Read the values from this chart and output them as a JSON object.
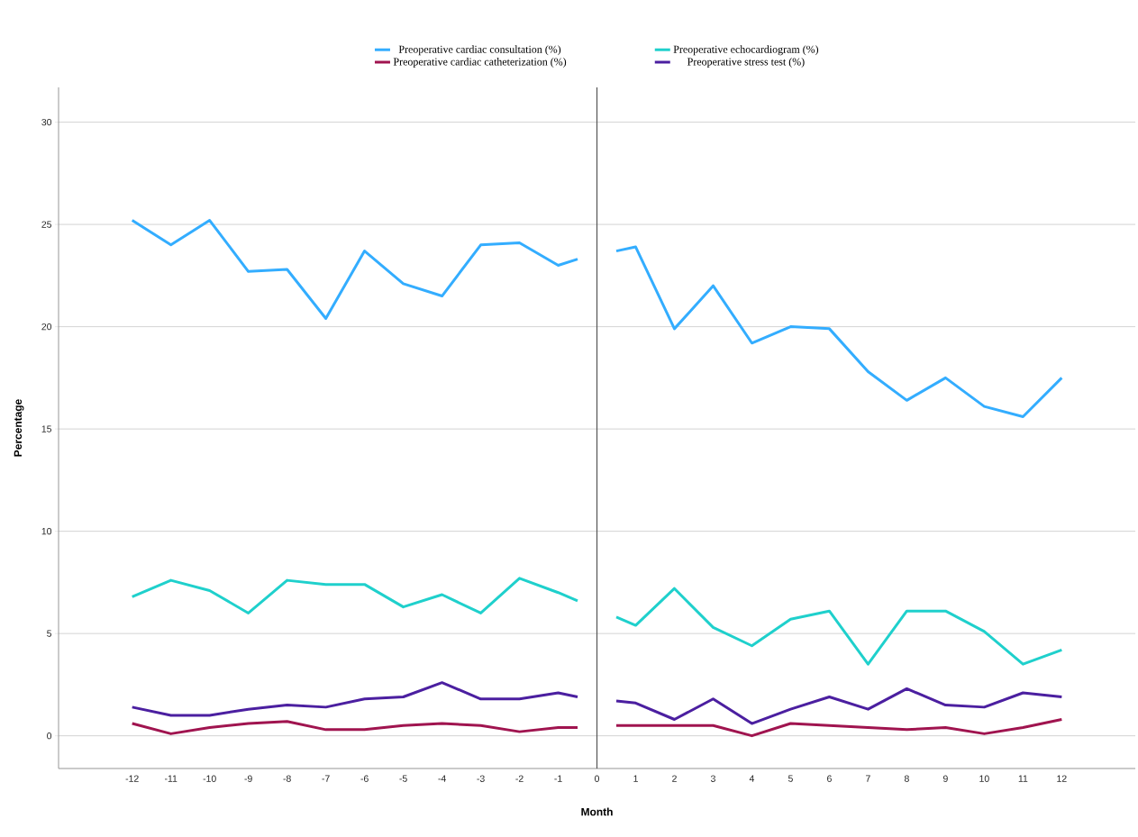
{
  "chart_data": {
    "type": "line",
    "xlabel": "Month",
    "ylabel": "Percentage",
    "x": [
      -12,
      -11,
      -10,
      -9,
      -8,
      -7,
      -6,
      -5,
      -4,
      -3,
      -2,
      -1,
      -0.5,
      0,
      0.5,
      1,
      2,
      3,
      4,
      5,
      6,
      7,
      8,
      9,
      10,
      11,
      12
    ],
    "series": [
      {
        "name": "Preoperative cardiac consultation (%)",
        "color": "#33adff",
        "values": [
          25.2,
          24.0,
          25.2,
          22.7,
          22.8,
          20.4,
          23.7,
          22.1,
          21.5,
          24.0,
          24.1,
          23.0,
          23.3,
          null,
          23.7,
          23.9,
          19.9,
          22.0,
          19.2,
          20.0,
          19.9,
          17.8,
          16.4,
          17.5,
          16.1,
          15.6,
          17.5
        ]
      },
      {
        "name": "Preoperative echocardiogram (%)",
        "color": "#1fd0cc",
        "values": [
          6.8,
          7.6,
          7.1,
          6.0,
          7.6,
          7.4,
          7.4,
          6.3,
          6.9,
          6.0,
          7.7,
          7.0,
          6.6,
          null,
          5.8,
          5.4,
          7.2,
          5.3,
          4.4,
          5.7,
          6.1,
          3.5,
          6.1,
          6.1,
          5.1,
          3.5,
          4.2
        ]
      },
      {
        "name": "Preoperative cardiac catheterization (%)",
        "color": "#a0144f",
        "values": [
          0.6,
          0.1,
          0.4,
          0.6,
          0.7,
          0.3,
          0.3,
          0.5,
          0.6,
          0.5,
          0.2,
          0.4,
          0.4,
          null,
          0.5,
          0.5,
          0.5,
          0.5,
          0.0,
          0.6,
          0.5,
          0.4,
          0.3,
          0.4,
          0.1,
          0.4,
          0.8
        ]
      },
      {
        "name": "Preoperative stress test (%)",
        "color": "#4b1fa0",
        "values": [
          1.4,
          1.0,
          1.0,
          1.3,
          1.5,
          1.4,
          1.8,
          1.9,
          2.6,
          1.8,
          1.8,
          2.1,
          1.9,
          null,
          1.7,
          1.6,
          0.8,
          1.8,
          0.6,
          1.3,
          1.9,
          1.3,
          2.3,
          1.5,
          1.4,
          2.1,
          1.9
        ]
      }
    ],
    "xlim": [
      -13.9,
      13.9
    ],
    "xticks": [
      -12,
      -11,
      -10,
      -9,
      -8,
      -7,
      -6,
      -5,
      -4,
      -3,
      -2,
      -1,
      0,
      1,
      2,
      3,
      4,
      5,
      6,
      7,
      8,
      9,
      10,
      11,
      12
    ],
    "ylim": [
      -1.6,
      31.7
    ],
    "yticks": [
      0,
      5,
      10,
      15,
      20,
      25,
      30
    ],
    "ref_lines": [
      {
        "axis": "x",
        "value": 0,
        "color": "#555555"
      }
    ],
    "grid": "y",
    "legend": "top",
    "marker": "none",
    "line_style": "solid"
  }
}
